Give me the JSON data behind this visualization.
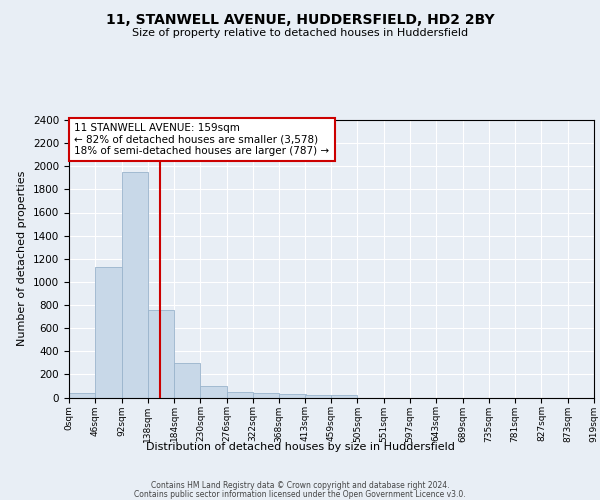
{
  "title": "11, STANWELL AVENUE, HUDDERSFIELD, HD2 2BY",
  "subtitle": "Size of property relative to detached houses in Huddersfield",
  "xlabel": "Distribution of detached houses by size in Huddersfield",
  "ylabel": "Number of detached properties",
  "bin_edges": [
    0,
    46,
    92,
    138,
    184,
    230,
    276,
    322,
    368,
    413,
    459,
    505,
    551,
    597,
    643,
    689,
    735,
    781,
    827,
    873,
    919
  ],
  "bar_heights": [
    40,
    1130,
    1950,
    760,
    295,
    100,
    45,
    40,
    30,
    20,
    20,
    0,
    0,
    0,
    0,
    0,
    0,
    0,
    0,
    0
  ],
  "bar_color": "#c8d8e8",
  "bar_edge_color": "#9ab4cc",
  "property_size": 159,
  "vline_color": "#cc0000",
  "annotation_line1": "11 STANWELL AVENUE: 159sqm",
  "annotation_line2": "← 82% of detached houses are smaller (3,578)",
  "annotation_line3": "18% of semi-detached houses are larger (787) →",
  "annotation_box_facecolor": "#ffffff",
  "annotation_box_edgecolor": "#cc0000",
  "ylim": [
    0,
    2400
  ],
  "yticks": [
    0,
    200,
    400,
    600,
    800,
    1000,
    1200,
    1400,
    1600,
    1800,
    2000,
    2200,
    2400
  ],
  "xtick_labels": [
    "0sqm",
    "46sqm",
    "92sqm",
    "138sqm",
    "184sqm",
    "230sqm",
    "276sqm",
    "322sqm",
    "368sqm",
    "413sqm",
    "459sqm",
    "505sqm",
    "551sqm",
    "597sqm",
    "643sqm",
    "689sqm",
    "735sqm",
    "781sqm",
    "827sqm",
    "873sqm",
    "919sqm"
  ],
  "background_color": "#e8eef5",
  "grid_color": "#ffffff",
  "footer_line1": "Contains HM Land Registry data © Crown copyright and database right 2024.",
  "footer_line2": "Contains public sector information licensed under the Open Government Licence v3.0."
}
